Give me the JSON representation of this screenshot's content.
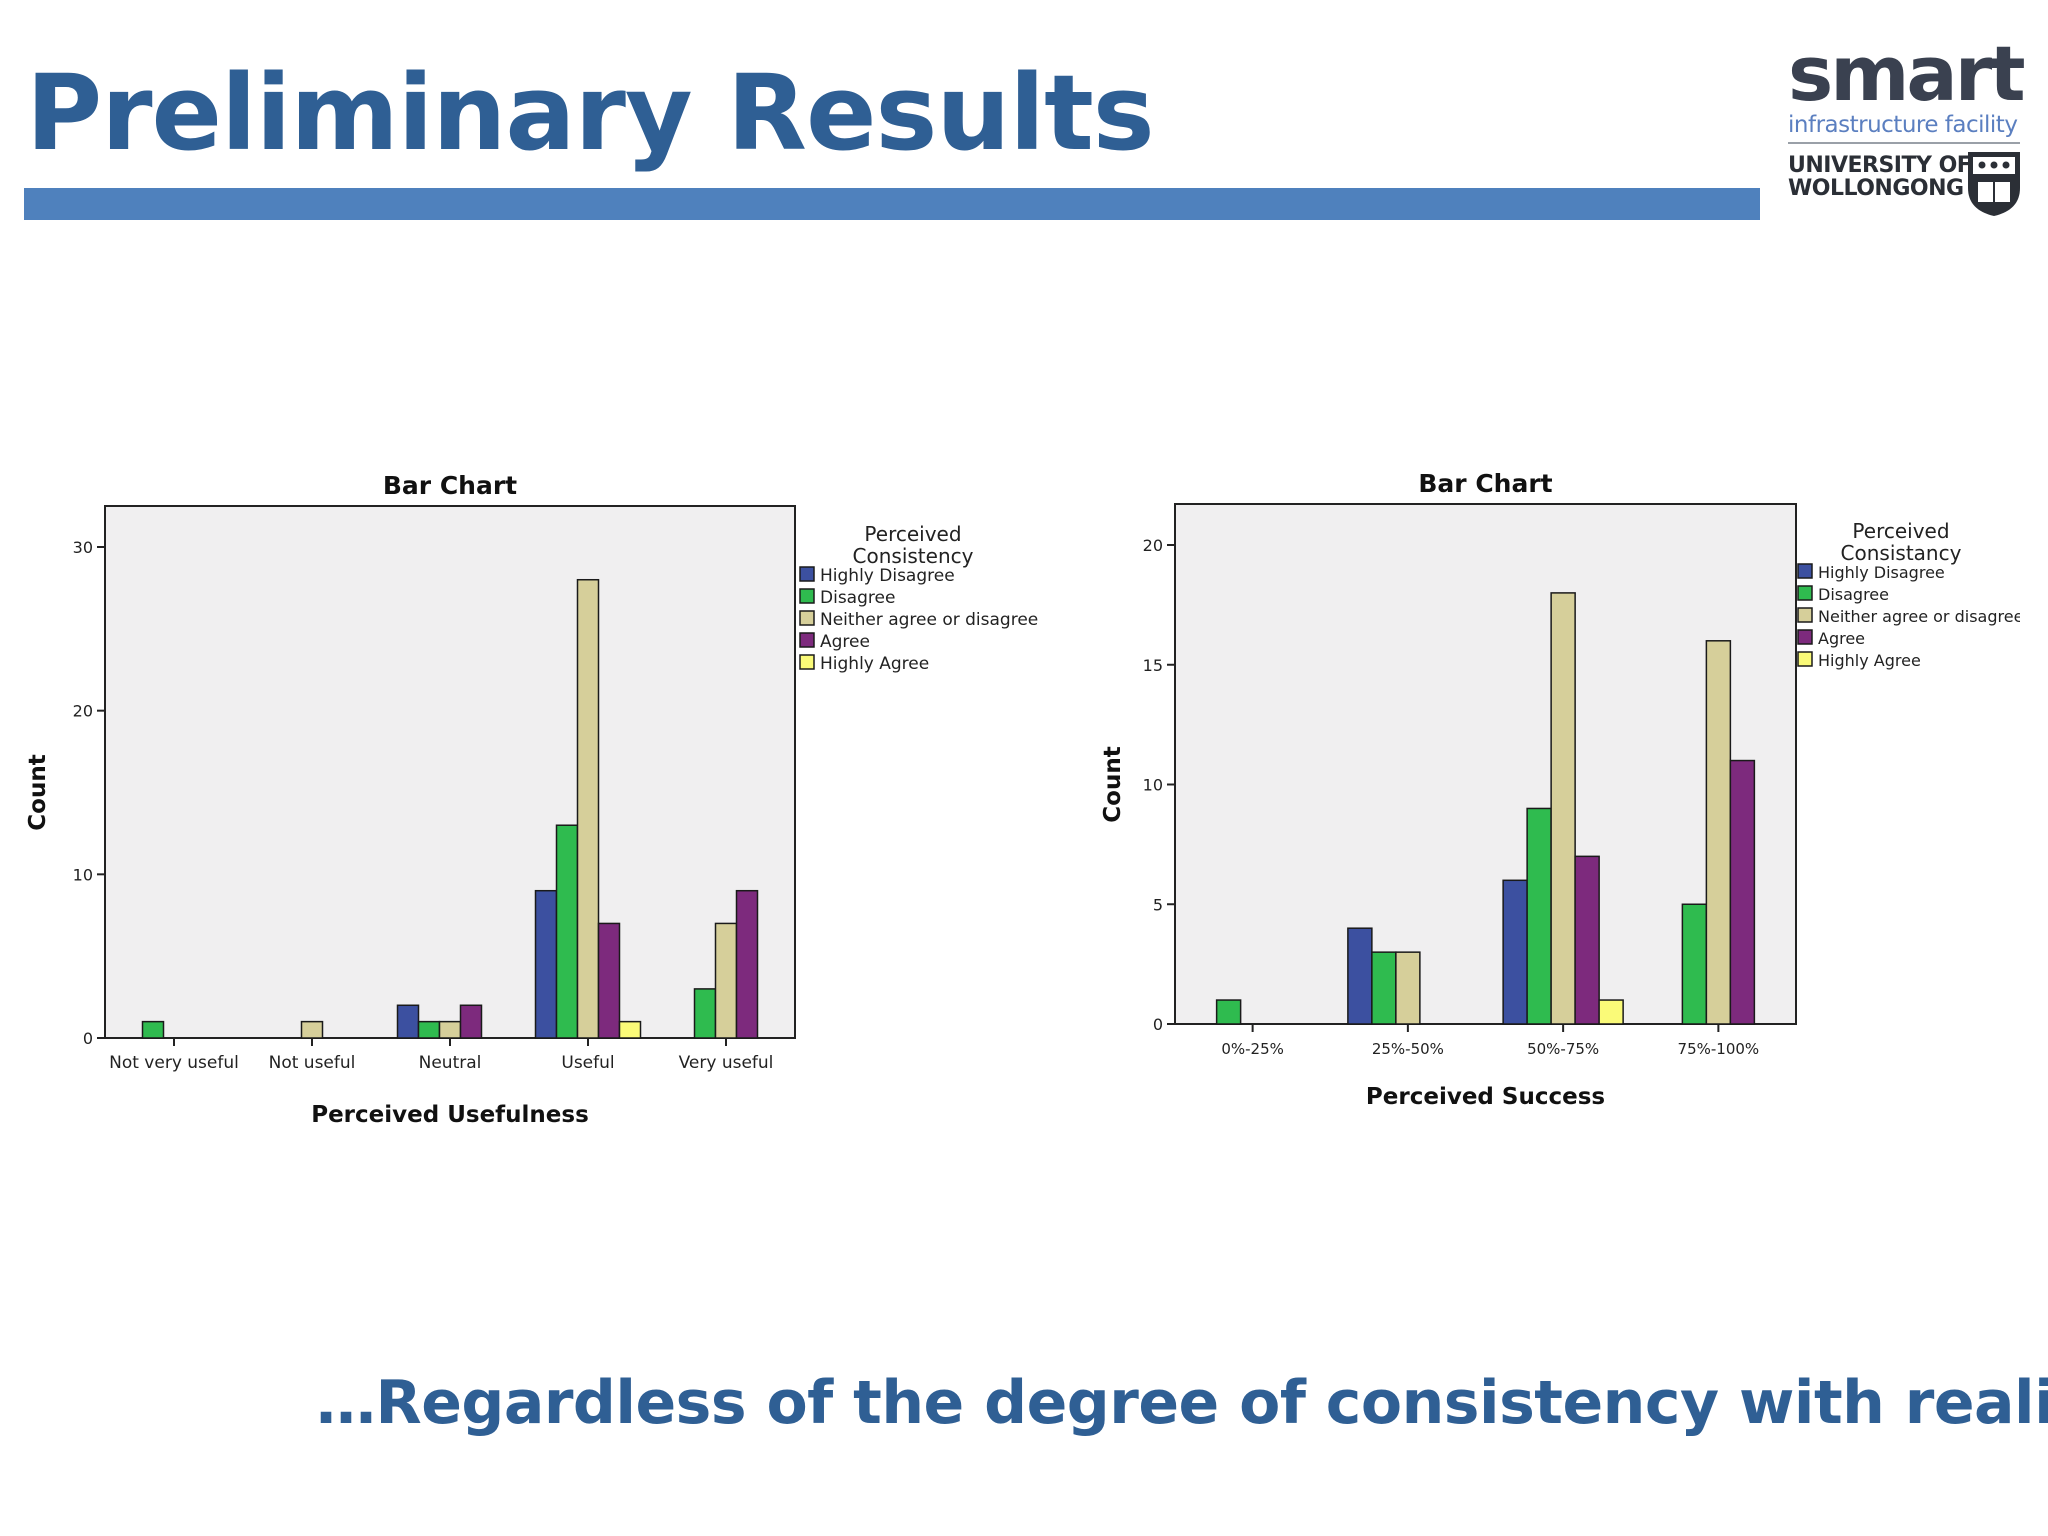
{
  "slide": {
    "title": "Preliminary Results",
    "conclusion": "…Regardless of the degree of consistency with reality!",
    "accent_color": "#4f81bd",
    "title_color": "#2f5f94"
  },
  "logo": {
    "brand": "smart",
    "subtitle": "infrastructure facility",
    "university_line1": "UNIVERSITY OF",
    "university_line2": "WOLLONGONG",
    "crest": "university-crest-icon"
  },
  "chart_data": [
    {
      "type": "bar",
      "title": "Bar Chart",
      "xlabel": "Perceived Usefulness",
      "ylabel": "Count",
      "ylim": [
        0,
        30
      ],
      "yticks": [
        "0",
        "10",
        "20",
        "30"
      ],
      "grid": false,
      "legend_placement": "top-right outside",
      "legend_title": [
        "Perceived",
        "Consistency"
      ],
      "categories": [
        "Not very useful",
        "Not useful",
        "Neutral",
        "Useful",
        "Very useful"
      ],
      "series": [
        {
          "name": "Highly Disagree",
          "color": "#3c50a0",
          "values": [
            0,
            0,
            2,
            9,
            0
          ]
        },
        {
          "name": "Disagree",
          "color": "#2fbb4f",
          "values": [
            1,
            0,
            1,
            13,
            3
          ]
        },
        {
          "name": "Neither agree or disagree",
          "color": "#d6cf9a",
          "values": [
            0,
            1,
            1,
            28,
            7
          ]
        },
        {
          "name": "Agree",
          "color": "#7d2a7d",
          "values": [
            0,
            0,
            2,
            7,
            9
          ]
        },
        {
          "name": "Highly Agree",
          "color": "#fafa78",
          "values": [
            0,
            0,
            0,
            1,
            0
          ]
        }
      ]
    },
    {
      "type": "bar",
      "title": "Bar Chart",
      "xlabel": "Perceived Success",
      "ylabel": "Count",
      "ylim": [
        0,
        20
      ],
      "yticks": [
        "0",
        "5",
        "10",
        "15",
        "20"
      ],
      "grid": false,
      "legend_placement": "top-right outside",
      "legend_title": [
        "Perceived",
        "Consistancy"
      ],
      "categories": [
        "0%-25%",
        "25%-50%",
        "50%-75%",
        "75%-100%"
      ],
      "series": [
        {
          "name": "Highly Disagree",
          "color": "#3c50a0",
          "values": [
            0,
            4,
            6,
            0
          ]
        },
        {
          "name": "Disagree",
          "color": "#2fbb4f",
          "values": [
            1,
            3,
            9,
            5
          ]
        },
        {
          "name": "Neither agree or disagree",
          "color": "#d6cf9a",
          "values": [
            0,
            3,
            18,
            16
          ]
        },
        {
          "name": "Agree",
          "color": "#7d2a7d",
          "values": [
            0,
            0,
            7,
            11
          ]
        },
        {
          "name": "Highly Agree",
          "color": "#fafa78",
          "values": [
            0,
            0,
            1,
            0
          ]
        }
      ]
    }
  ]
}
